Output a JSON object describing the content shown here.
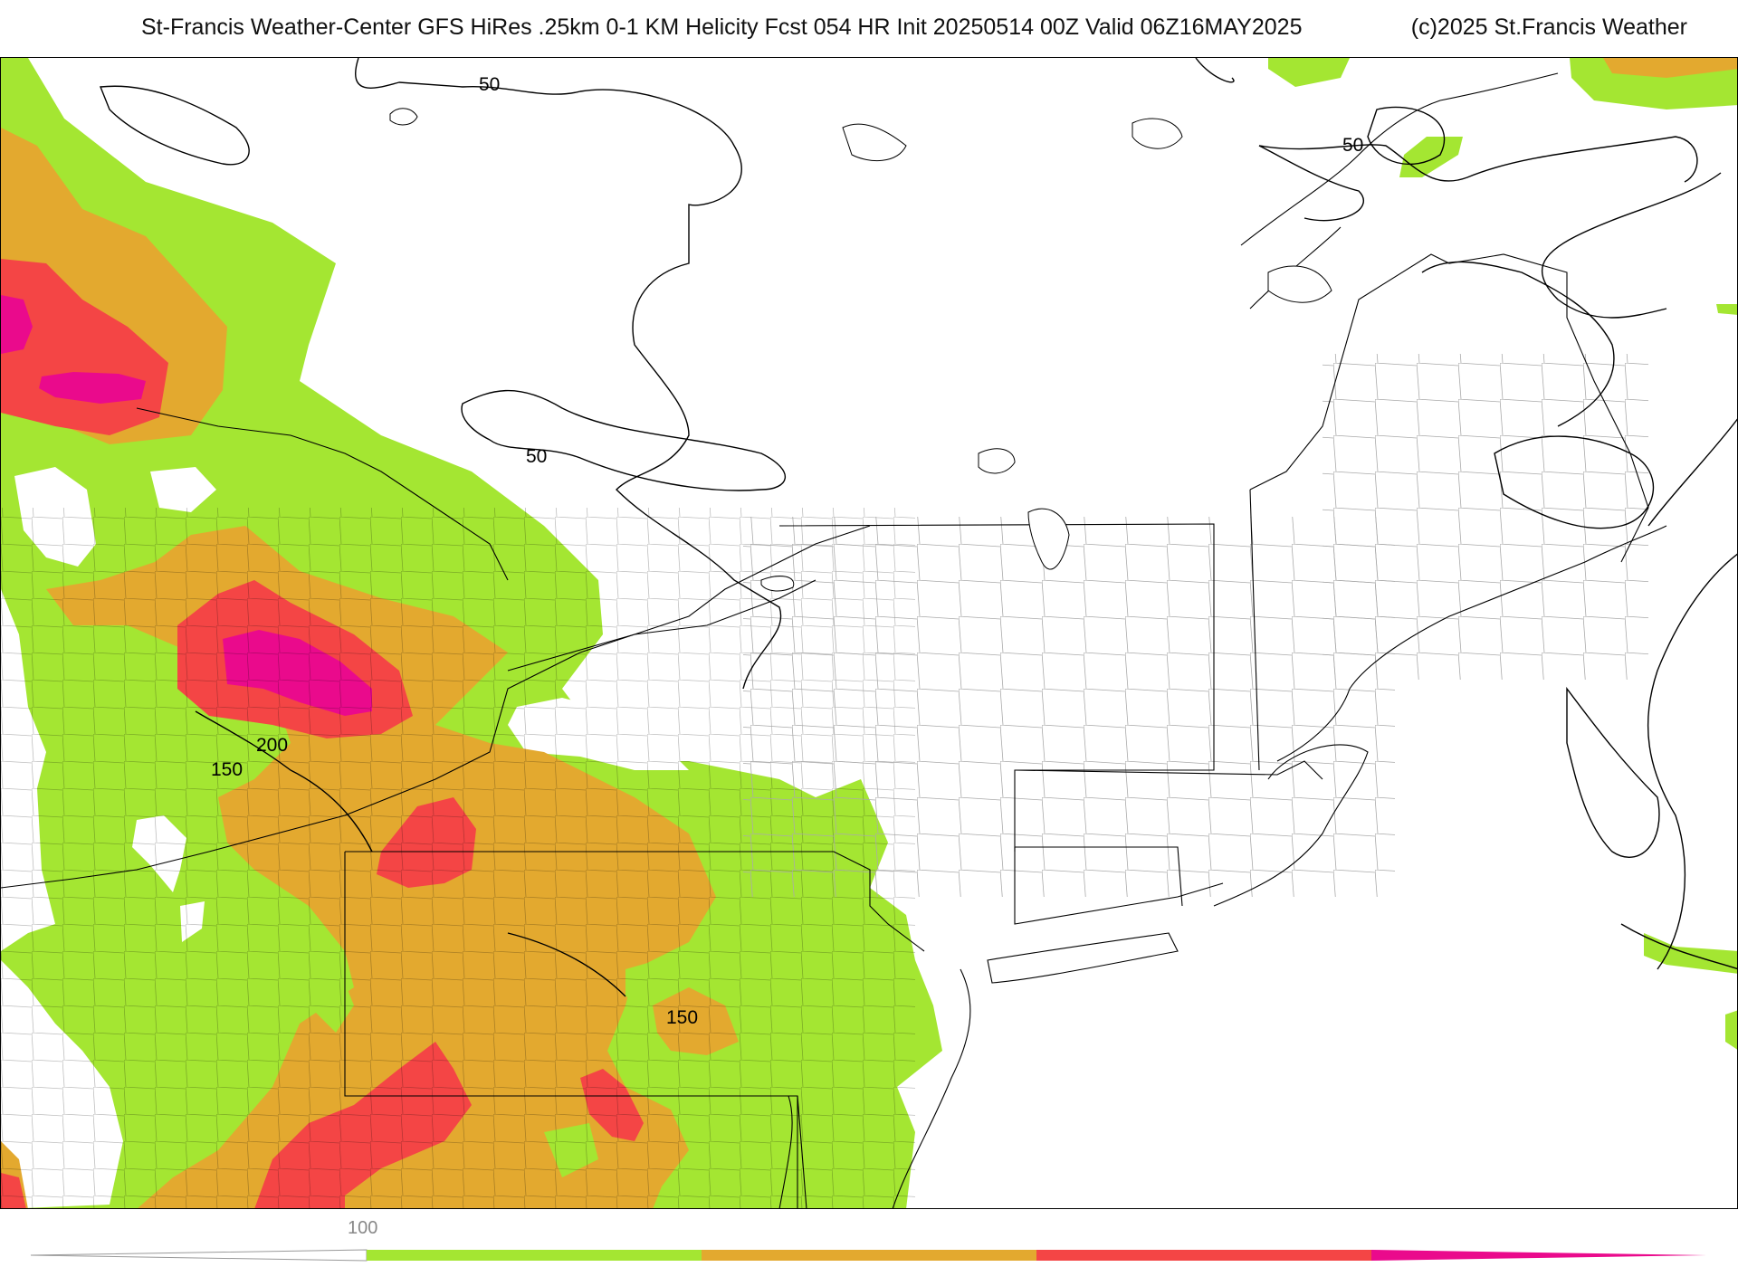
{
  "header": {
    "title": "St-Francis Weather-Center GFS HiRes .25km 0-1 KM Helicity Fcst 054 HR Init 20250514 00Z  Valid 06Z16MAY2025",
    "copyright": "(c)2025 St.Francis Weather"
  },
  "map": {
    "variable": "0-1 KM Helicity",
    "contour_labels": [
      "50",
      "50",
      "50",
      "200",
      "150",
      "150"
    ]
  },
  "colorbar": {
    "tick_label": "100",
    "colors": {
      "white": "#ffffff",
      "green": "#a4e632",
      "orange": "#e3a92f",
      "red": "#f44545",
      "magenta": "#ea0a8c"
    }
  }
}
